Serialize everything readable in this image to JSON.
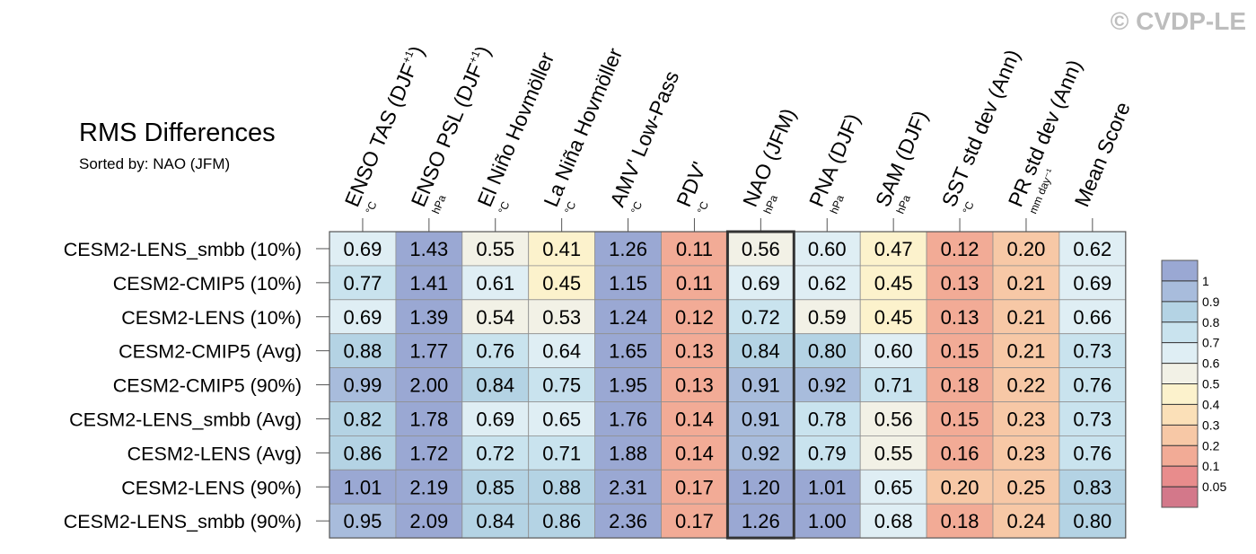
{
  "copyright": "© CVDP-LE",
  "chart_data": {
    "type": "heatmap",
    "title": "RMS Differences",
    "subtitle": "Sorted by: NAO (JFM)",
    "highlighted_column": "NAO (JFM)",
    "columns": [
      {
        "name": "ENSO TAS (DJF",
        "sup": "+1",
        "close": ")",
        "unit": "°C"
      },
      {
        "name": "ENSO PSL (DJF",
        "sup": "+1",
        "close": ")",
        "unit": "hPa"
      },
      {
        "name": "El Niño Hovmöller",
        "sup": "",
        "close": "",
        "unit": "°C"
      },
      {
        "name": "La Niña Hovmöller",
        "sup": "",
        "close": "",
        "unit": "°C"
      },
      {
        "name": "AMV' Low-Pass",
        "sup": "",
        "close": "",
        "unit": "°C"
      },
      {
        "name": "PDV'",
        "sup": "",
        "close": "",
        "unit": "°C"
      },
      {
        "name": "NAO (JFM)",
        "sup": "",
        "close": "",
        "unit": "hPa"
      },
      {
        "name": "PNA (DJF)",
        "sup": "",
        "close": "",
        "unit": "hPa"
      },
      {
        "name": "SAM (DJF)",
        "sup": "",
        "close": "",
        "unit": "hPa"
      },
      {
        "name": "SST std dev (Ann)",
        "sup": "",
        "close": "",
        "unit": "°C"
      },
      {
        "name": "PR std dev (Ann)",
        "sup": "",
        "close": "",
        "unit": "mm day⁻¹"
      },
      {
        "name": "Mean Score",
        "sup": "",
        "close": "",
        "unit": ""
      }
    ],
    "rows": [
      {
        "name": "CESM2-LENS_smbb (10%)",
        "values": [
          "0.69",
          "1.43",
          "0.55",
          "0.41",
          "1.26",
          "0.11",
          "0.56",
          "0.60",
          "0.47",
          "0.12",
          "0.20",
          "0.62"
        ]
      },
      {
        "name": "CESM2-CMIP5 (10%)",
        "values": [
          "0.77",
          "1.41",
          "0.61",
          "0.45",
          "1.15",
          "0.11",
          "0.69",
          "0.62",
          "0.45",
          "0.13",
          "0.21",
          "0.69"
        ]
      },
      {
        "name": "CESM2-LENS (10%)",
        "values": [
          "0.69",
          "1.39",
          "0.54",
          "0.53",
          "1.24",
          "0.12",
          "0.72",
          "0.59",
          "0.45",
          "0.13",
          "0.21",
          "0.66"
        ]
      },
      {
        "name": "CESM2-CMIP5 (Avg)",
        "values": [
          "0.88",
          "1.77",
          "0.76",
          "0.64",
          "1.65",
          "0.13",
          "0.84",
          "0.80",
          "0.60",
          "0.15",
          "0.21",
          "0.73"
        ]
      },
      {
        "name": "CESM2-CMIP5 (90%)",
        "values": [
          "0.99",
          "2.00",
          "0.84",
          "0.75",
          "1.95",
          "0.13",
          "0.91",
          "0.92",
          "0.71",
          "0.18",
          "0.22",
          "0.76"
        ]
      },
      {
        "name": "CESM2-LENS_smbb (Avg)",
        "values": [
          "0.82",
          "1.78",
          "0.69",
          "0.65",
          "1.76",
          "0.14",
          "0.91",
          "0.78",
          "0.56",
          "0.15",
          "0.23",
          "0.73"
        ]
      },
      {
        "name": "CESM2-LENS (Avg)",
        "values": [
          "0.86",
          "1.72",
          "0.72",
          "0.71",
          "1.88",
          "0.14",
          "0.92",
          "0.79",
          "0.55",
          "0.16",
          "0.23",
          "0.76"
        ]
      },
      {
        "name": "CESM2-LENS (90%)",
        "values": [
          "1.01",
          "2.19",
          "0.85",
          "0.88",
          "2.31",
          "0.17",
          "1.20",
          "1.01",
          "0.65",
          "0.20",
          "0.25",
          "0.83"
        ]
      },
      {
        "name": "CESM2-LENS_smbb (90%)",
        "values": [
          "0.95",
          "2.09",
          "0.84",
          "0.86",
          "2.36",
          "0.17",
          "1.26",
          "1.00",
          "0.68",
          "0.18",
          "0.24",
          "0.80"
        ]
      }
    ],
    "colorbar": {
      "labels": [
        "1",
        "0.9",
        "0.8",
        "0.7",
        "0.6",
        "0.5",
        "0.4",
        "0.3",
        "0.2",
        "0.1",
        "0.05"
      ],
      "thresholds": [
        0.05,
        0.1,
        0.2,
        0.3,
        0.4,
        0.5,
        0.6,
        0.7,
        0.8,
        0.9,
        1.0
      ],
      "colors": [
        "#d3788a",
        "#e88c8c",
        "#f2ab96",
        "#f7c8a6",
        "#fbe0b8",
        "#fcf2cc",
        "#f2f1e6",
        "#dfeef4",
        "#c9e3ee",
        "#b4d3e4",
        "#a8bcdc",
        "#9aa8d3"
      ]
    }
  }
}
